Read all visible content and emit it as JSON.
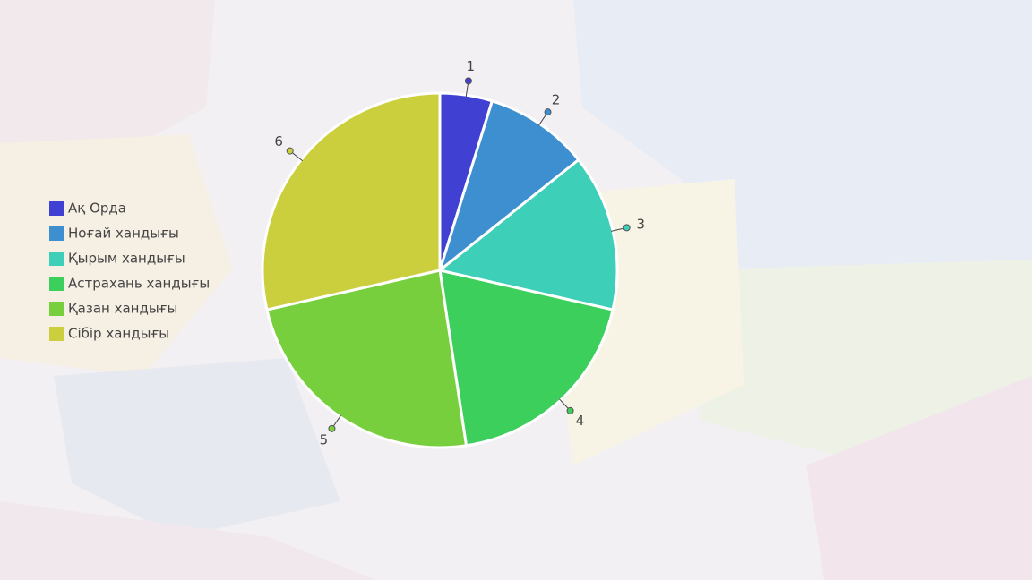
{
  "chart_data": {
    "type": "pie",
    "categories": [
      "Ақ Орда",
      "Ноғай хандығы",
      "Қырым хандығы",
      "Астрахань хандығы",
      "Қазан хандығы",
      "Сібір хандығы"
    ],
    "values": [
      1,
      2,
      3,
      4,
      5,
      6
    ],
    "colors": [
      "#4040d2",
      "#3d8fd0",
      "#3dcfb7",
      "#3dcf5c",
      "#77cf3d",
      "#cccf3d"
    ],
    "legend": "left"
  }
}
